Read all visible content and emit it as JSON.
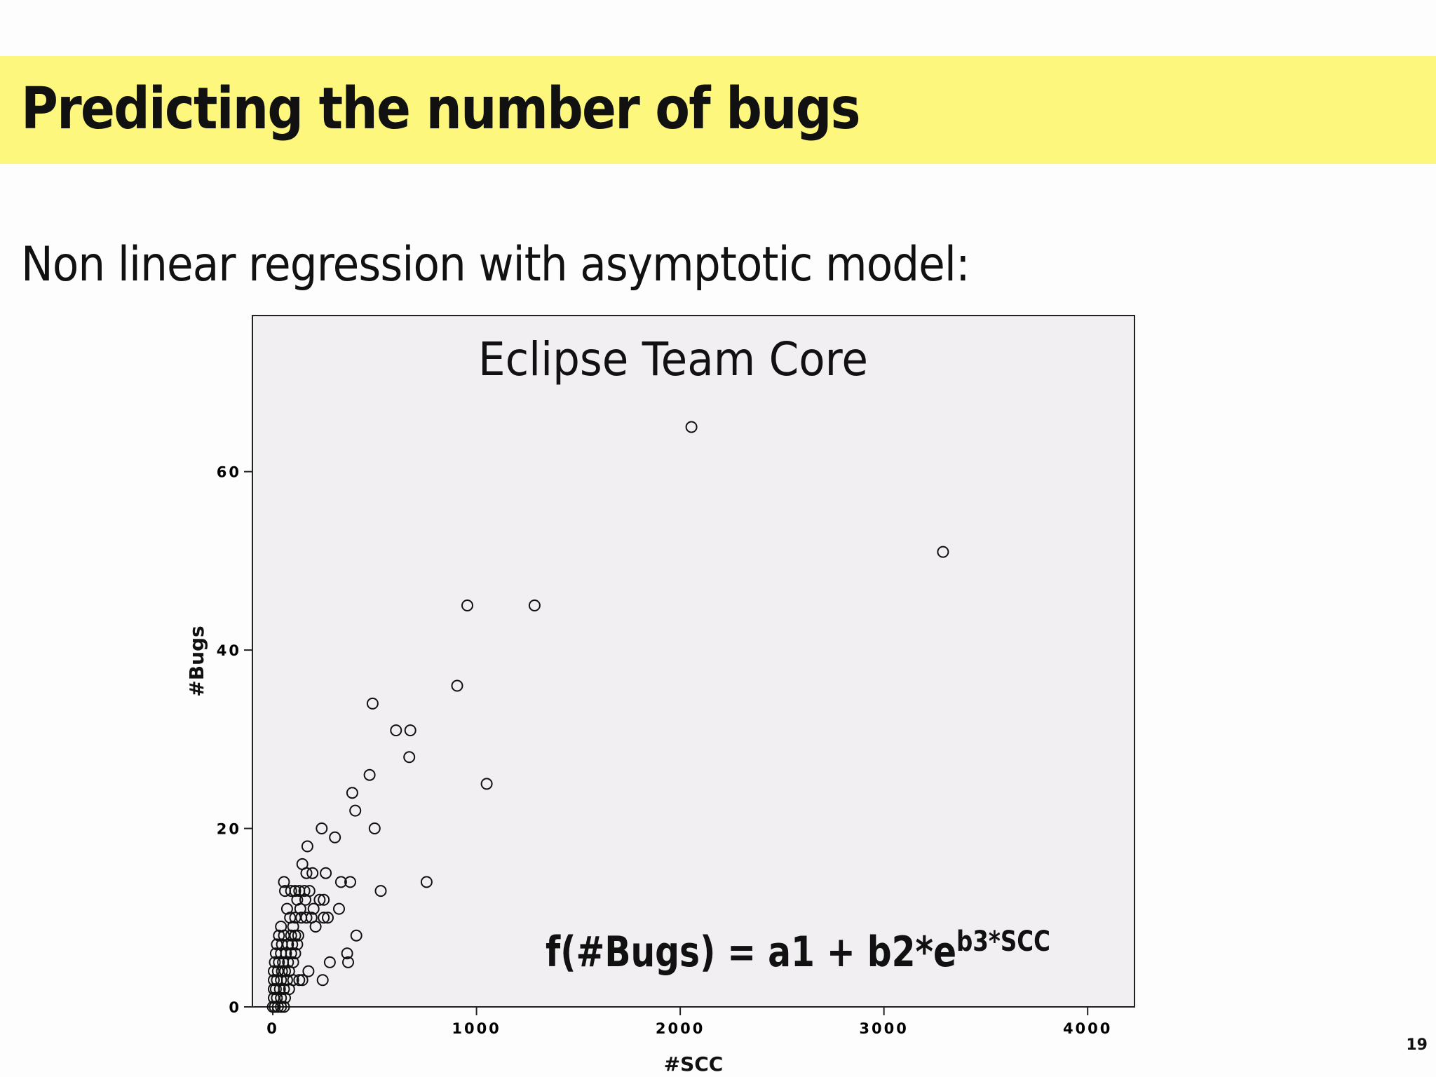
{
  "slide": {
    "title": "Predicting the number of bugs",
    "subtitle": "Non linear regression with asymptotic model:",
    "page_number": "19",
    "accent_color": "#fdf87d"
  },
  "formula": {
    "base": "f(#Bugs) = a1 + b2*e",
    "exponent": "b3*SCC"
  },
  "chart_data": {
    "type": "scatter",
    "title": "Eclipse Team Core",
    "xlabel": "#SCC",
    "ylabel": "#Bugs",
    "xlim": [
      -100,
      4230
    ],
    "ylim": [
      0,
      77.5
    ],
    "xticks": [
      0,
      1000,
      2000,
      3000,
      4000
    ],
    "yticks": [
      0,
      20,
      40,
      60
    ],
    "marker": "open-circle",
    "plot_background": "#f1eff2",
    "grid": false,
    "series": [
      {
        "points": [
          [
            2055,
            65
          ],
          [
            3290,
            51
          ],
          [
            955,
            45
          ],
          [
            1285,
            45
          ],
          [
            905,
            36
          ],
          [
            490,
            34
          ],
          [
            605,
            31
          ],
          [
            675,
            31
          ],
          [
            670,
            28
          ],
          [
            475,
            26
          ],
          [
            1050,
            25
          ],
          [
            390,
            24
          ],
          [
            405,
            22
          ],
          [
            240,
            20
          ],
          [
            500,
            20
          ],
          [
            305,
            19
          ],
          [
            170,
            18
          ],
          [
            145,
            16
          ],
          [
            165,
            15
          ],
          [
            195,
            15
          ],
          [
            260,
            15
          ],
          [
            55,
            14
          ],
          [
            335,
            14
          ],
          [
            380,
            14
          ],
          [
            755,
            14
          ],
          [
            60,
            13
          ],
          [
            90,
            13
          ],
          [
            110,
            13
          ],
          [
            130,
            13
          ],
          [
            155,
            13
          ],
          [
            180,
            13
          ],
          [
            530,
            13
          ],
          [
            120,
            12
          ],
          [
            160,
            12
          ],
          [
            230,
            12
          ],
          [
            250,
            12
          ],
          [
            70,
            11
          ],
          [
            135,
            11
          ],
          [
            200,
            11
          ],
          [
            325,
            11
          ],
          [
            85,
            10
          ],
          [
            110,
            10
          ],
          [
            140,
            10
          ],
          [
            165,
            10
          ],
          [
            190,
            10
          ],
          [
            250,
            10
          ],
          [
            270,
            10
          ],
          [
            40,
            9
          ],
          [
            100,
            9
          ],
          [
            210,
            9
          ],
          [
            30,
            8
          ],
          [
            55,
            8
          ],
          [
            90,
            8
          ],
          [
            110,
            8
          ],
          [
            125,
            8
          ],
          [
            410,
            8
          ],
          [
            20,
            7
          ],
          [
            45,
            7
          ],
          [
            75,
            7
          ],
          [
            95,
            7
          ],
          [
            120,
            7
          ],
          [
            15,
            6
          ],
          [
            40,
            6
          ],
          [
            65,
            6
          ],
          [
            90,
            6
          ],
          [
            110,
            6
          ],
          [
            365,
            6
          ],
          [
            10,
            5
          ],
          [
            30,
            5
          ],
          [
            50,
            5
          ],
          [
            75,
            5
          ],
          [
            100,
            5
          ],
          [
            280,
            5
          ],
          [
            370,
            5
          ],
          [
            5,
            4
          ],
          [
            25,
            4
          ],
          [
            45,
            4
          ],
          [
            60,
            4
          ],
          [
            80,
            4
          ],
          [
            175,
            4
          ],
          [
            5,
            3
          ],
          [
            20,
            3
          ],
          [
            40,
            3
          ],
          [
            70,
            3
          ],
          [
            100,
            3
          ],
          [
            130,
            3
          ],
          [
            145,
            3
          ],
          [
            245,
            3
          ],
          [
            5,
            2
          ],
          [
            15,
            2
          ],
          [
            35,
            2
          ],
          [
            55,
            2
          ],
          [
            80,
            2
          ],
          [
            5,
            1
          ],
          [
            20,
            1
          ],
          [
            40,
            1
          ],
          [
            60,
            1
          ],
          [
            0,
            0
          ],
          [
            10,
            0
          ],
          [
            25,
            0
          ],
          [
            40,
            0
          ],
          [
            55,
            0
          ]
        ]
      }
    ]
  }
}
